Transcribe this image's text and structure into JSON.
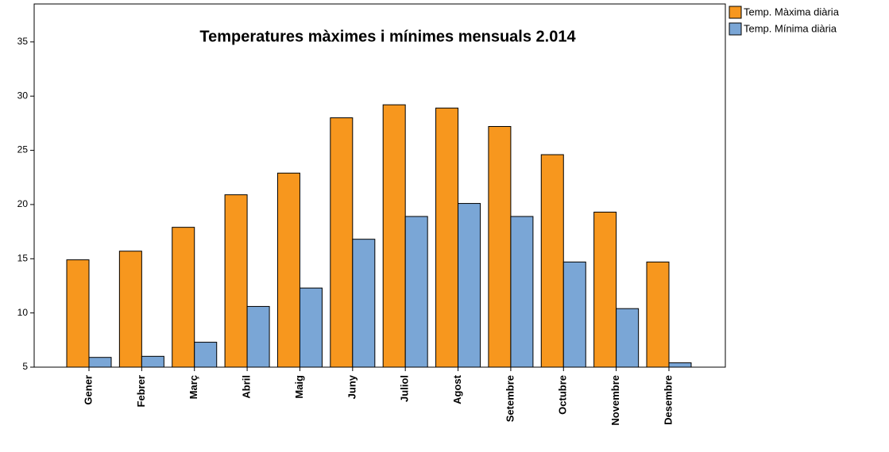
{
  "chart_data": {
    "type": "bar",
    "title": "Temperatures màximes i mínimes mensuals 2.014",
    "categories": [
      "Gener",
      "Febrer",
      "Març",
      "Abril",
      "Maig",
      "Juny",
      "Juliol",
      "Agost",
      "Setembre",
      "Octubre",
      "Novembre",
      "Desembre"
    ],
    "series": [
      {
        "name": "Temp. Màxima diària",
        "color": "#f7971e",
        "values": [
          14.9,
          15.7,
          17.9,
          20.9,
          22.9,
          28.0,
          29.2,
          28.9,
          27.2,
          24.6,
          19.3,
          14.7
        ]
      },
      {
        "name": "Temp. Mínima diària",
        "color": "#7aa6d6",
        "values": [
          5.9,
          6.0,
          7.3,
          10.6,
          12.3,
          16.8,
          18.9,
          20.1,
          18.9,
          14.7,
          10.4,
          5.4
        ]
      }
    ],
    "ylim": [
      5,
      38.5
    ],
    "yticks": [
      5,
      10,
      15,
      20,
      25,
      30,
      35
    ],
    "legend": "top-right"
  }
}
